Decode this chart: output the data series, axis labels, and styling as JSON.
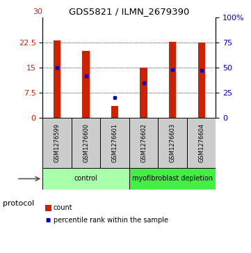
{
  "title": "GDS5821 / ILMN_2679390",
  "samples": [
    "GSM1276599",
    "GSM1276600",
    "GSM1276601",
    "GSM1276602",
    "GSM1276603",
    "GSM1276604"
  ],
  "counts": [
    23.2,
    20.0,
    3.5,
    15.0,
    22.8,
    22.5
  ],
  "percentile_ranks": [
    50,
    42,
    20,
    35,
    48,
    47
  ],
  "left_ylim": [
    0,
    30
  ],
  "right_ylim": [
    0,
    100
  ],
  "left_yticks": [
    0,
    7.5,
    15,
    22.5
  ],
  "left_yticklabels": [
    "0",
    "7.5",
    "15",
    "22.5"
  ],
  "right_yticks": [
    0,
    25,
    50,
    75,
    100
  ],
  "right_yticklabels": [
    "0",
    "25",
    "50",
    "75",
    "100%"
  ],
  "gridlines": [
    7.5,
    15,
    22.5
  ],
  "bar_color": "#cc2200",
  "marker_color": "#0000cc",
  "groups": [
    {
      "label": "control",
      "indices": [
        0,
        1,
        2
      ],
      "color": "#aaffaa"
    },
    {
      "label": "myofibroblast depletion",
      "indices": [
        3,
        4,
        5
      ],
      "color": "#44ee44"
    }
  ],
  "protocol_label": "protocol",
  "legend_count_label": "count",
  "legend_percentile_label": "percentile rank within the sample",
  "tick_label_color_left": "#cc2200",
  "tick_label_color_right": "#0000cc",
  "bar_width": 0.25,
  "sample_area_bg": "#cccccc",
  "top_tick_label": "30"
}
